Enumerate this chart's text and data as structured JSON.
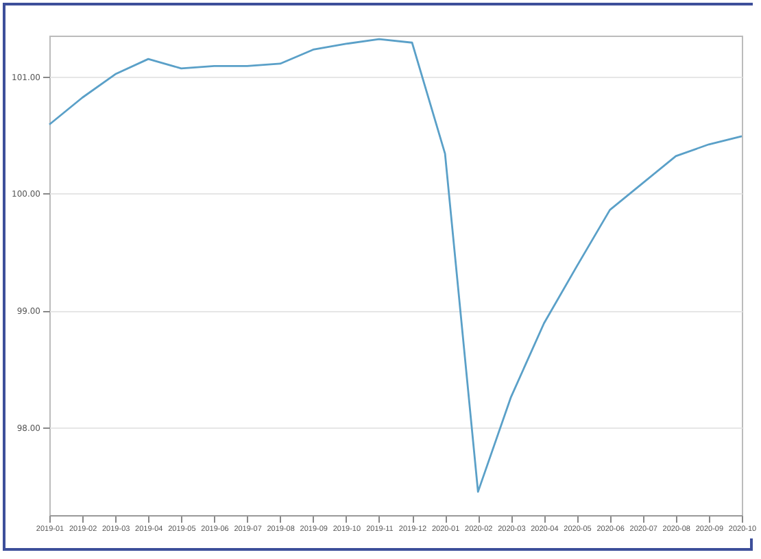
{
  "chart_data": {
    "type": "line",
    "categories": [
      "2019-01",
      "2019-02",
      "2019-03",
      "2019-04",
      "2019-05",
      "2019-06",
      "2019-07",
      "2019-08",
      "2019-09",
      "2019-10",
      "2019-11",
      "2019-12",
      "2020-01",
      "2020-02",
      "2020-03",
      "2020-04",
      "2020-05",
      "2020-06",
      "2020-07",
      "2020-08",
      "2020-09",
      "2020-10"
    ],
    "series": [
      {
        "color": "#5aa0c8",
        "values": [
          100.59,
          100.82,
          101.02,
          101.15,
          101.07,
          101.09,
          101.09,
          101.11,
          101.23,
          101.28,
          101.32,
          101.29,
          100.34,
          97.45,
          98.26,
          98.89,
          99.38,
          99.86,
          100.09,
          100.32,
          100.42,
          100.49
        ]
      }
    ],
    "ylim": [
      97.25,
      101.35
    ],
    "yticks": [
      {
        "value": 98,
        "label": "98.00"
      },
      {
        "value": 99,
        "label": "99.00"
      },
      {
        "value": 100,
        "label": "100.00"
      },
      {
        "value": 101,
        "label": "101.00"
      }
    ],
    "grid": "y",
    "legend": false,
    "marker": "none",
    "line_style": "solid"
  }
}
